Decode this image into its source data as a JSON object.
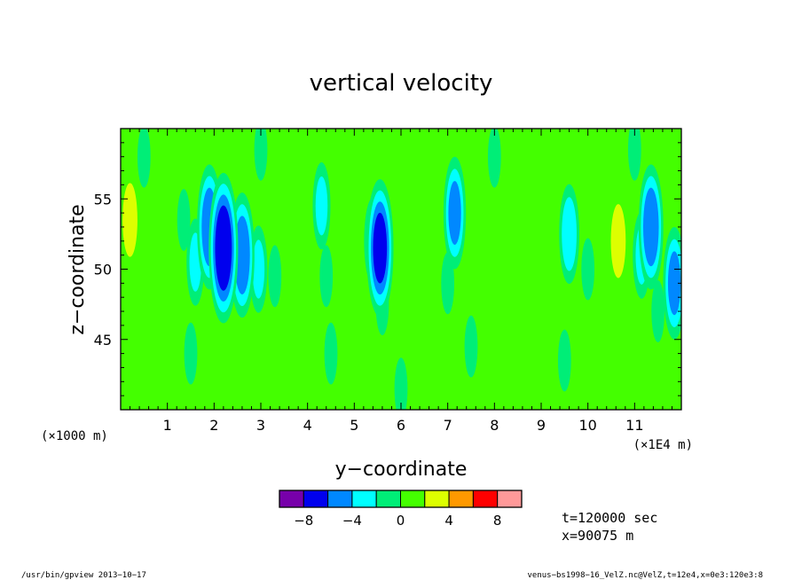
{
  "chart_data": {
    "type": "heatmap",
    "title": "vertical velocity",
    "xlabel": "y−coordinate",
    "ylabel": "z−coordinate",
    "x_unit_left": "(×1000 m)",
    "x_unit_right": "(×1E4 m)",
    "xlim": [
      0,
      120000
    ],
    "ylim": [
      40000,
      60000
    ],
    "x_ticks": [
      10000,
      20000,
      30000,
      40000,
      50000,
      60000,
      70000,
      80000,
      90000,
      100000,
      110000
    ],
    "x_tick_labels": [
      "1",
      "2",
      "3",
      "4",
      "5",
      "6",
      "7",
      "8",
      "9",
      "10",
      "11"
    ],
    "y_ticks": [
      45000,
      50000,
      55000
    ],
    "y_tick_labels": [
      "45",
      "50",
      "55"
    ],
    "colorbar": {
      "levels": [
        -10,
        -8,
        -6,
        -4,
        -2,
        0,
        2,
        4,
        6,
        8,
        10
      ],
      "tick_values": [
        -8,
        -4,
        0,
        4,
        8
      ],
      "tick_labels": [
        "−8",
        "−4",
        "0",
        "4",
        "8"
      ],
      "colors": [
        "#7700aa",
        "#0000ee",
        "#0088ff",
        "#00ffff",
        "#00ee77",
        "#44ff00",
        "#ddff00",
        "#ff9900",
        "#ff0000",
        "#ff9999"
      ]
    },
    "info_lines": [
      "t=120000 sec",
      "x=90075 m"
    ],
    "features": [
      {
        "y": 22000,
        "z": 51500,
        "value": -9
      },
      {
        "y": 19000,
        "z": 53000,
        "value": -7
      },
      {
        "y": 26000,
        "z": 51000,
        "value": -7
      },
      {
        "y": 16000,
        "z": 50500,
        "value": -4
      },
      {
        "y": 13500,
        "z": 53500,
        "value": -2
      },
      {
        "y": 29500,
        "z": 50000,
        "value": -4
      },
      {
        "y": 33000,
        "z": 49500,
        "value": -2
      },
      {
        "y": 43000,
        "z": 54500,
        "value": -4
      },
      {
        "y": 55500,
        "z": 51500,
        "value": -8
      },
      {
        "y": 54000,
        "z": 52000,
        "value": -4
      },
      {
        "y": 71500,
        "z": 54000,
        "value": -6
      },
      {
        "y": 96000,
        "z": 52500,
        "value": -5
      },
      {
        "y": 113500,
        "z": 53000,
        "value": -7
      },
      {
        "y": 111500,
        "z": 51000,
        "value": -4
      },
      {
        "y": 118500,
        "z": 49000,
        "value": -6
      },
      {
        "y": 2000,
        "z": 53500,
        "value": 5
      },
      {
        "y": 2000,
        "z": 50000,
        "value": 2
      },
      {
        "y": 60500,
        "z": 52000,
        "value": 3
      },
      {
        "y": 64000,
        "z": 52500,
        "value": 2
      },
      {
        "y": 86000,
        "z": 51500,
        "value": 3
      },
      {
        "y": 90000,
        "z": 52000,
        "value": 3
      },
      {
        "y": 104000,
        "z": 51000,
        "value": 3
      },
      {
        "y": 106500,
        "z": 52000,
        "value": 5
      },
      {
        "y": 37000,
        "z": 52500,
        "value": 2
      },
      {
        "y": 81000,
        "z": 53500,
        "value": 2
      },
      {
        "y": 76500,
        "z": 55000,
        "value": 2
      },
      {
        "y": 28000,
        "z": 55500,
        "value": 2
      },
      {
        "y": 44000,
        "z": 49500,
        "value": -2
      },
      {
        "y": 56000,
        "z": 47500,
        "value": -2
      },
      {
        "y": 70000,
        "z": 49000,
        "value": -2
      },
      {
        "y": 100000,
        "z": 50000,
        "value": -2
      },
      {
        "y": 115000,
        "z": 47000,
        "value": -2
      },
      {
        "y": 15000,
        "z": 44000,
        "value": -2
      },
      {
        "y": 45000,
        "z": 44000,
        "value": -2
      },
      {
        "y": 75000,
        "z": 44500,
        "value": -2
      },
      {
        "y": 95000,
        "z": 43500,
        "value": -2
      },
      {
        "y": 60000,
        "z": 41500,
        "value": -2
      },
      {
        "y": 30000,
        "z": 58500,
        "value": -2
      },
      {
        "y": 80000,
        "z": 58000,
        "value": -2
      },
      {
        "y": 110000,
        "z": 58500,
        "value": -2
      },
      {
        "y": 5000,
        "z": 58000,
        "value": -2
      }
    ]
  },
  "footer": {
    "left": "/usr/bin/gpview   2013−10−17",
    "right": "venus−bs1998−16_VelZ.nc@VelZ,t=12e4,x=0e3:120e3:8"
  }
}
